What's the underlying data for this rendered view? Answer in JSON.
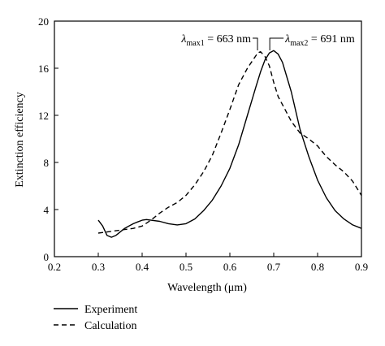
{
  "chart_data": {
    "type": "line",
    "title": "",
    "xlabel": "Wavelength (μm)",
    "ylabel": "Extinction efficiency",
    "xlim": [
      0.2,
      0.9
    ],
    "ylim": [
      0,
      20
    ],
    "xticks": [
      0.2,
      0.3,
      0.4,
      0.5,
      0.6,
      0.7,
      0.8,
      0.9
    ],
    "xtick_labels": [
      "0.2",
      "0.3",
      "0.4",
      "0.5",
      "0.6",
      "0.7",
      "0.8",
      "0.9"
    ],
    "yticks": [
      0,
      4,
      8,
      12,
      16,
      20
    ],
    "ytick_labels": [
      "0",
      "4",
      "8",
      "12",
      "16",
      "20"
    ],
    "grid": false,
    "legend_position": "bottom-left, below plot",
    "series": [
      {
        "name": "Experiment",
        "style": "solid",
        "x": [
          0.3,
          0.31,
          0.32,
          0.33,
          0.34,
          0.35,
          0.36,
          0.37,
          0.38,
          0.39,
          0.4,
          0.41,
          0.42,
          0.44,
          0.46,
          0.48,
          0.5,
          0.52,
          0.54,
          0.56,
          0.58,
          0.6,
          0.62,
          0.64,
          0.66,
          0.67,
          0.68,
          0.69,
          0.7,
          0.71,
          0.72,
          0.74,
          0.76,
          0.78,
          0.8,
          0.82,
          0.84,
          0.86,
          0.88,
          0.9
        ],
        "y": [
          3.1,
          2.6,
          1.8,
          1.65,
          1.8,
          2.1,
          2.4,
          2.6,
          2.8,
          2.95,
          3.1,
          3.15,
          3.1,
          3.0,
          2.8,
          2.7,
          2.8,
          3.2,
          3.9,
          4.8,
          6.0,
          7.5,
          9.5,
          12.0,
          14.5,
          15.7,
          16.7,
          17.3,
          17.5,
          17.2,
          16.5,
          14.0,
          10.8,
          8.5,
          6.5,
          5.0,
          3.9,
          3.2,
          2.7,
          2.4
        ]
      },
      {
        "name": "Calculation",
        "style": "dashed",
        "x": [
          0.3,
          0.32,
          0.34,
          0.36,
          0.38,
          0.4,
          0.42,
          0.44,
          0.46,
          0.48,
          0.5,
          0.52,
          0.54,
          0.56,
          0.58,
          0.6,
          0.62,
          0.64,
          0.66,
          0.663,
          0.67,
          0.68,
          0.69,
          0.7,
          0.71,
          0.72,
          0.74,
          0.76,
          0.78,
          0.8,
          0.82,
          0.84,
          0.86,
          0.88,
          0.9
        ],
        "y": [
          2.0,
          2.1,
          2.2,
          2.3,
          2.4,
          2.6,
          3.1,
          3.7,
          4.2,
          4.6,
          5.2,
          6.1,
          7.2,
          8.6,
          10.5,
          12.5,
          14.6,
          16.0,
          17.1,
          17.3,
          17.4,
          17.0,
          16.2,
          14.8,
          13.6,
          12.9,
          11.5,
          10.5,
          10.0,
          9.4,
          8.5,
          7.8,
          7.2,
          6.4,
          5.2
        ]
      }
    ],
    "annotations": [
      {
        "symbol": "λ",
        "subscript": "max1",
        "text": " = 663 nm",
        "x": 0.663
      },
      {
        "symbol": "λ",
        "subscript": "max2",
        "text": " = 691 nm",
        "x": 0.691
      }
    ]
  }
}
